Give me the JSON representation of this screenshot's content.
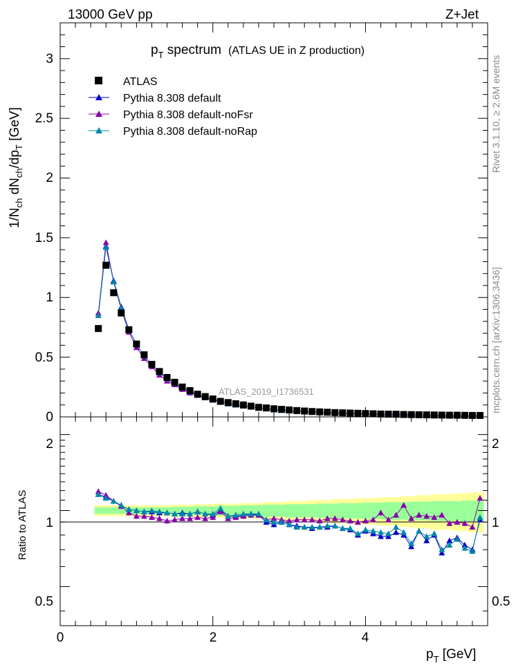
{
  "header": {
    "energy": "13000 GeV pp",
    "process": "Z+Jet"
  },
  "title": {
    "main": "p",
    "main_sub": "T",
    "main_rest": " spectrum",
    "paren": "(ATLAS UE in Z production)"
  },
  "side": {
    "rivet": "Rivet 3.1.10, ≥ 2.6M events",
    "mcplots": "mcplots.cern.ch [arXiv:1306.3436]"
  },
  "analysis_id": "ATLAS_2019_I1736531",
  "axes": {
    "top_ylabel": {
      "a": "1/N",
      "a_sub": "ch",
      "b": " dN",
      "b_sub": "ch",
      "c": "/dp",
      "c_sub": "T",
      "d": " [GeV]"
    },
    "ratio_ylabel": "Ratio to ATLAS",
    "xlabel": {
      "a": "p",
      "a_sub": "T",
      "b": " [GeV]"
    },
    "top_yticks": [
      "0",
      "0.5",
      "1",
      "1.5",
      "2",
      "2.5",
      "3"
    ],
    "ratio_yticks": [
      "0.5",
      "1",
      "2"
    ],
    "xticks": [
      "0",
      "2",
      "4"
    ]
  },
  "legend": [
    {
      "label": "ATLAS",
      "marker": "square",
      "color": "#000000"
    },
    {
      "label": "Pythia 8.308 default",
      "marker": "triangle",
      "color": "#0000cc"
    },
    {
      "label": "Pythia 8.308 default-noFsr",
      "marker": "triangle",
      "color": "#8800aa"
    },
    {
      "label": "Pythia 8.308 default-noRap",
      "marker": "triangle",
      "color": "#0088aa"
    }
  ],
  "colors": {
    "atlas": "#000000",
    "default": "#0000cc",
    "noFsr": "#8800aa",
    "noRap": "#0088aa",
    "band_inner": "#99ff99",
    "band_outer": "#ffff99"
  },
  "chart_data": {
    "type": "scatter",
    "x": [
      0.5,
      0.6,
      0.7,
      0.8,
      0.9,
      1.0,
      1.1,
      1.2,
      1.3,
      1.4,
      1.5,
      1.6,
      1.7,
      1.8,
      1.9,
      2.0,
      2.1,
      2.2,
      2.3,
      2.4,
      2.5,
      2.6,
      2.7,
      2.8,
      2.9,
      3.0,
      3.1,
      3.2,
      3.3,
      3.4,
      3.5,
      3.6,
      3.7,
      3.8,
      3.9,
      4.0,
      4.1,
      4.2,
      4.3,
      4.4,
      4.5,
      4.6,
      4.7,
      4.8,
      4.9,
      5.0,
      5.1,
      5.2,
      5.3,
      5.4,
      5.5
    ],
    "xlim": [
      0,
      5.6
    ],
    "ylim_main": [
      0,
      3.3
    ],
    "ylim_ratio": [
      0.35,
      2.35
    ],
    "ratio_scale": "log",
    "series": [
      {
        "name": "ATLAS",
        "values": [
          0.74,
          1.27,
          1.04,
          0.87,
          0.73,
          0.61,
          0.52,
          0.44,
          0.38,
          0.33,
          0.29,
          0.25,
          0.22,
          0.19,
          0.17,
          0.15,
          0.13,
          0.12,
          0.11,
          0.1,
          0.09,
          0.08,
          0.075,
          0.068,
          0.063,
          0.058,
          0.053,
          0.049,
          0.045,
          0.042,
          0.039,
          0.036,
          0.034,
          0.032,
          0.03,
          0.028,
          0.026,
          0.024,
          0.023,
          0.022,
          0.02,
          0.019,
          0.018,
          0.017,
          0.016,
          0.015,
          0.014,
          0.014,
          0.013,
          0.012,
          0.012
        ]
      },
      {
        "name": "Pythia 8.308 default",
        "values": [
          0.85,
          1.43,
          1.14,
          0.92,
          0.73,
          0.61,
          0.51,
          0.44,
          0.37,
          0.32,
          0.28,
          0.24,
          0.21,
          0.19,
          0.16,
          0.15,
          0.13,
          0.11,
          0.1,
          0.09,
          0.085,
          0.075,
          0.07,
          0.06,
          0.055,
          0.05,
          0.046,
          0.042,
          0.038,
          0.036,
          0.034,
          0.031,
          0.029,
          0.027,
          0.024,
          0.023,
          0.021,
          0.019,
          0.018,
          0.018,
          0.016,
          0.014,
          0.015,
          0.013,
          0.012,
          0.012,
          0.011,
          0.011,
          0.01,
          0.009,
          0.012
        ]
      },
      {
        "name": "Pythia 8.308 default-noFsr",
        "values": [
          0.87,
          1.46,
          1.13,
          0.9,
          0.71,
          0.58,
          0.49,
          0.42,
          0.35,
          0.3,
          0.27,
          0.23,
          0.2,
          0.18,
          0.16,
          0.14,
          0.13,
          0.11,
          0.1,
          0.09,
          0.085,
          0.075,
          0.07,
          0.063,
          0.058,
          0.053,
          0.048,
          0.045,
          0.041,
          0.038,
          0.036,
          0.033,
          0.031,
          0.029,
          0.027,
          0.026,
          0.024,
          0.023,
          0.021,
          0.021,
          0.019,
          0.018,
          0.017,
          0.016,
          0.015,
          0.014,
          0.013,
          0.012,
          0.012,
          0.011,
          0.011
        ]
      },
      {
        "name": "Pythia 8.308 default-noRap",
        "values": [
          0.85,
          1.42,
          1.13,
          0.91,
          0.73,
          0.61,
          0.51,
          0.44,
          0.37,
          0.32,
          0.28,
          0.24,
          0.21,
          0.19,
          0.16,
          0.15,
          0.13,
          0.11,
          0.1,
          0.09,
          0.085,
          0.075,
          0.07,
          0.06,
          0.055,
          0.05,
          0.046,
          0.042,
          0.039,
          0.036,
          0.034,
          0.032,
          0.029,
          0.027,
          0.025,
          0.023,
          0.021,
          0.02,
          0.019,
          0.018,
          0.016,
          0.014,
          0.015,
          0.014,
          0.012,
          0.012,
          0.011,
          0.011,
          0.01,
          0.009,
          0.011
        ]
      }
    ],
    "ratio_series": [
      {
        "name": "Pythia 8.308 default",
        "values": [
          1.16,
          1.13,
          1.09,
          1.05,
          1.01,
          1.0,
          0.99,
          0.99,
          0.98,
          0.98,
          0.97,
          0.98,
          0.97,
          0.99,
          0.97,
          0.96,
          1.0,
          0.95,
          0.95,
          0.96,
          0.97,
          0.96,
          0.9,
          0.88,
          0.9,
          0.88,
          0.87,
          0.86,
          0.85,
          0.86,
          0.86,
          0.87,
          0.85,
          0.84,
          0.8,
          0.83,
          0.81,
          0.79,
          0.79,
          0.82,
          0.8,
          0.72,
          0.83,
          0.76,
          0.8,
          0.68,
          0.76,
          0.78,
          0.73,
          0.7,
          0.92
        ]
      },
      {
        "name": "Pythia 8.308 default-noFsr",
        "values": [
          1.19,
          1.15,
          1.09,
          1.04,
          0.98,
          0.95,
          0.95,
          0.94,
          0.93,
          0.91,
          0.92,
          0.93,
          0.93,
          0.94,
          0.93,
          0.94,
          0.99,
          0.93,
          0.94,
          0.95,
          0.96,
          0.96,
          0.92,
          0.93,
          0.92,
          0.91,
          0.92,
          0.92,
          0.92,
          0.91,
          0.93,
          0.93,
          0.92,
          0.91,
          0.9,
          0.91,
          0.92,
          0.98,
          0.92,
          0.96,
          1.05,
          0.93,
          0.96,
          0.95,
          0.94,
          0.96,
          0.89,
          0.9,
          0.89,
          0.86,
          1.12
        ]
      },
      {
        "name": "Pythia 8.308 default-noRap",
        "values": [
          1.16,
          1.12,
          1.09,
          1.05,
          1.01,
          1.0,
          0.99,
          1.0,
          0.99,
          0.98,
          0.97,
          0.97,
          0.97,
          0.99,
          0.97,
          0.97,
          1.02,
          0.95,
          0.96,
          0.97,
          0.97,
          0.97,
          0.92,
          0.9,
          0.9,
          0.88,
          0.86,
          0.86,
          0.86,
          0.86,
          0.87,
          0.87,
          0.85,
          0.85,
          0.81,
          0.84,
          0.83,
          0.82,
          0.81,
          0.86,
          0.82,
          0.74,
          0.83,
          0.79,
          0.81,
          0.7,
          0.73,
          0.77,
          0.71,
          0.69,
          0.94
        ]
      }
    ],
    "band_inner_halfwidth": [
      0.03,
      0.03,
      0.03,
      0.03,
      0.03,
      0.03,
      0.03,
      0.03,
      0.03,
      0.03,
      0.035,
      0.035,
      0.035,
      0.04,
      0.04,
      0.04,
      0.045,
      0.045,
      0.045,
      0.05,
      0.05,
      0.05,
      0.055,
      0.055,
      0.055,
      0.06,
      0.06,
      0.06,
      0.06,
      0.065,
      0.065,
      0.065,
      0.07,
      0.07,
      0.07,
      0.075,
      0.075,
      0.075,
      0.08,
      0.08,
      0.08,
      0.085,
      0.085,
      0.085,
      0.09,
      0.09,
      0.09,
      0.09,
      0.095,
      0.095,
      0.095
    ],
    "band_outer_halfwidth": [
      0.05,
      0.05,
      0.05,
      0.05,
      0.05,
      0.05,
      0.05,
      0.05,
      0.05,
      0.05,
      0.055,
      0.055,
      0.055,
      0.06,
      0.06,
      0.06,
      0.065,
      0.065,
      0.065,
      0.07,
      0.07,
      0.07,
      0.08,
      0.08,
      0.08,
      0.09,
      0.09,
      0.09,
      0.1,
      0.1,
      0.1,
      0.11,
      0.11,
      0.11,
      0.12,
      0.12,
      0.12,
      0.13,
      0.13,
      0.13,
      0.14,
      0.14,
      0.15,
      0.15,
      0.16,
      0.16,
      0.16,
      0.17,
      0.17,
      0.18,
      0.18
    ]
  }
}
